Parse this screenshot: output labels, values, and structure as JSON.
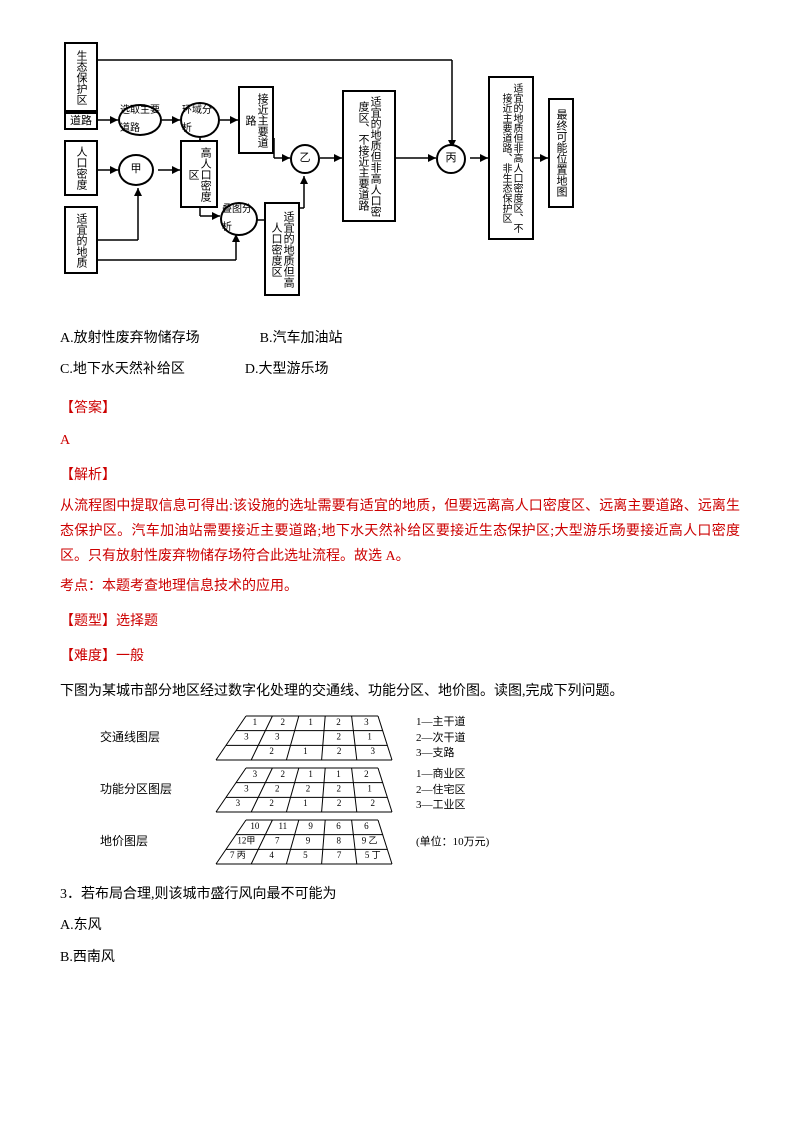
{
  "flow": {
    "eco": "生态保护区",
    "road": "道路",
    "pop": "人口密度",
    "geo": "适宜的地质",
    "sel_road": "选取主要道路",
    "env": "环域分析",
    "near_road": "接近主要道路",
    "jia": "甲",
    "high_pop": "高人口密度区",
    "overlay": "叠图分析",
    "yi": "乙",
    "geo_hp": "适宜的地质但高人口密度区",
    "geo_np_nr": "适宜的地质但非高人口密度区、不接近主要道路",
    "bing": "丙",
    "final_cond": "适宜的地质但非高人口密度区、不接近主要道路、非生态保护区",
    "final": "最终可能位置地图"
  },
  "options": {
    "a": "A.放射性废弃物储存场",
    "b": "B.汽车加油站",
    "c": "C.地下水天然补给区",
    "d": "D.大型游乐场"
  },
  "labels": {
    "answer_hdr": "【答案】",
    "answer": "A",
    "explain_hdr": "【解析】",
    "type_hdr": "【题型】选择题",
    "diff_hdr": "【难度】一般"
  },
  "explain": {
    "p1": "从流程图中提取信息可得出:该设施的选址需要有适宜的地质，但要远离高人口密度区、远离主要道路、远离生态保护区。汽车加油站需要接近主要道路;地下水天然补给区要接近生态保护区;大型游乐场要接近高人口密度区。只有放射性废弃物储存场符合此选址流程。故选 A。",
    "p2": "考点：本题考查地理信息技术的应用。"
  },
  "para2": "下图为某城市部分地区经过数字化处理的交通线、功能分区、地价图。读图,完成下列问题。",
  "layers": {
    "traffic": {
      "label": "交通线图层",
      "rows": [
        [
          "1",
          "2",
          "1",
          "2",
          "3"
        ],
        [
          "3",
          "3",
          "",
          "2",
          "1"
        ],
        [
          "",
          "2",
          "1",
          "2",
          "3"
        ]
      ],
      "legend": [
        "1—主干道",
        "2—次干道",
        "3—支路"
      ]
    },
    "func": {
      "label": "功能分区图层",
      "rows": [
        [
          "3",
          "2",
          "1",
          "1",
          "2"
        ],
        [
          "3",
          "2",
          "2",
          "2",
          "1"
        ],
        [
          "3",
          "2",
          "1",
          "2",
          "2"
        ]
      ],
      "legend": [
        "1—商业区",
        "2—住宅区",
        "3—工业区"
      ]
    },
    "price": {
      "label": "地价图层",
      "rows": [
        [
          "10",
          "11",
          "9",
          "6",
          "6"
        ],
        [
          "12甲",
          "7",
          "9",
          "8",
          "9 乙"
        ],
        [
          "7 丙",
          "4",
          "5",
          "7",
          "5 丁"
        ]
      ],
      "legend": [
        "(单位：10万元)"
      ]
    }
  },
  "q3": {
    "stem": "3．若布局合理,则该城市盛行风向最不可能为",
    "a": "A.东风",
    "b": "B.西南风"
  }
}
